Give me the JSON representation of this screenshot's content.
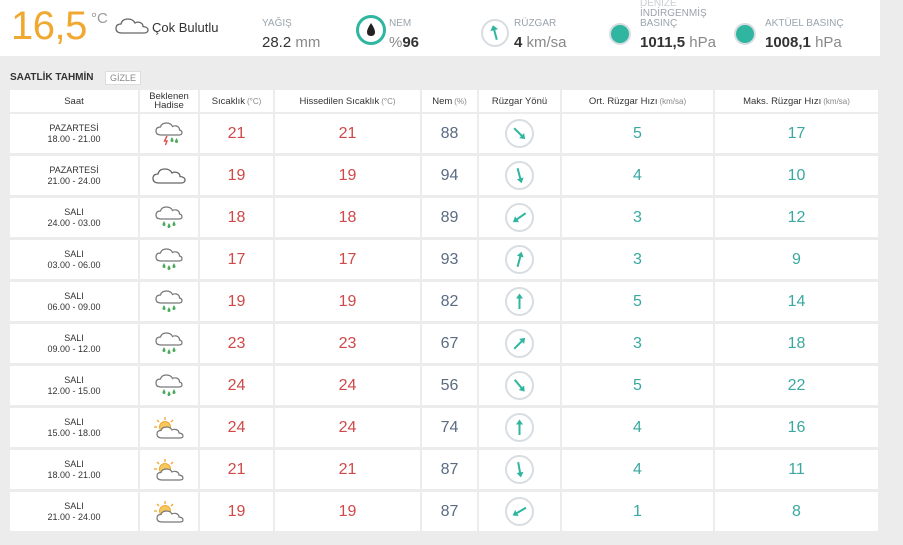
{
  "current": {
    "temp": "16,5",
    "unit": "°C",
    "desc": "Çok Bulutlu",
    "precip": {
      "label": "YAĞIŞ",
      "value": "28.2",
      "unit": "mm"
    },
    "humidity": {
      "label": "NEM",
      "value": "96",
      "prefix": "%"
    },
    "wind": {
      "label": "RÜZGAR",
      "value": "4",
      "unit": "km/sa"
    },
    "sea_pressure": {
      "label_lines": [
        "DENİZE",
        "İNDİRGENMİŞ",
        "BASINÇ"
      ],
      "value": "1011,5",
      "unit": "hPa"
    },
    "actual_pressure": {
      "label": "AKTÜEL BASINÇ",
      "value": "1008,1",
      "unit": "hPa"
    }
  },
  "section": {
    "title": "SAATLİK TAHMİN",
    "toggle": "GİZLE"
  },
  "headers": {
    "time": "Saat",
    "event_line1": "Beklenen",
    "event_line2": "Hadise",
    "temp": "Sıcaklık",
    "temp_unit": "(°C)",
    "feels": "Hissedilen Sıcaklık",
    "feels_unit": "(°C)",
    "hum": "Nem",
    "hum_unit": "(%)",
    "wdir": "Rüzgar Yönü",
    "wavg": "Ort. Rüzgar Hızı",
    "wavg_unit": "(km/sa)",
    "wmax": "Maks. Rüzgar Hızı",
    "wmax_unit": "(km/sa)"
  },
  "rows": [
    {
      "day": "PAZARTESİ",
      "time": "18.00 - 21.00",
      "icon": "thunder-rain-icon",
      "temp": "21",
      "feels": "21",
      "hum": "88",
      "dir": 135,
      "avg": "5",
      "max": "17"
    },
    {
      "day": "PAZARTESİ",
      "time": "21.00 - 24.00",
      "icon": "cloudy-icon",
      "temp": "19",
      "feels": "19",
      "hum": "94",
      "dir": 165,
      "avg": "4",
      "max": "10"
    },
    {
      "day": "SALI",
      "time": "24.00 - 03.00",
      "icon": "rain-icon",
      "temp": "18",
      "feels": "18",
      "hum": "89",
      "dir": 235,
      "avg": "3",
      "max": "12"
    },
    {
      "day": "SALI",
      "time": "03.00 - 06.00",
      "icon": "rain-icon",
      "temp": "17",
      "feels": "17",
      "hum": "93",
      "dir": 15,
      "avg": "3",
      "max": "9"
    },
    {
      "day": "SALI",
      "time": "06.00 - 09.00",
      "icon": "rain-icon",
      "temp": "19",
      "feels": "19",
      "hum": "82",
      "dir": 0,
      "avg": "5",
      "max": "14"
    },
    {
      "day": "SALI",
      "time": "09.00 - 12.00",
      "icon": "rain-icon",
      "temp": "23",
      "feels": "23",
      "hum": "67",
      "dir": 45,
      "avg": "3",
      "max": "18"
    },
    {
      "day": "SALI",
      "time": "12.00 - 15.00",
      "icon": "rain-icon",
      "temp": "24",
      "feels": "24",
      "hum": "56",
      "dir": 140,
      "avg": "5",
      "max": "22"
    },
    {
      "day": "SALI",
      "time": "15.00 - 18.00",
      "icon": "partly-cloudy-icon",
      "temp": "24",
      "feels": "24",
      "hum": "74",
      "dir": 0,
      "avg": "4",
      "max": "16"
    },
    {
      "day": "SALI",
      "time": "18.00 - 21.00",
      "icon": "partly-cloudy-icon",
      "temp": "21",
      "feels": "21",
      "hum": "87",
      "dir": 170,
      "avg": "4",
      "max": "11"
    },
    {
      "day": "SALI",
      "time": "21.00 - 24.00",
      "icon": "partly-cloudy-icon",
      "temp": "19",
      "feels": "19",
      "hum": "87",
      "dir": 240,
      "avg": "1",
      "max": "8"
    }
  ],
  "colors": {
    "temp": "#d04848",
    "accent": "#2fb5a0",
    "current_temp": "#f0a830"
  }
}
